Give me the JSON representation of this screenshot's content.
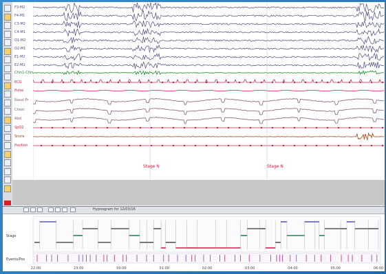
{
  "channels": [
    {
      "label": "F3-M2",
      "color": "#4a4a80"
    },
    {
      "label": "F4-M1",
      "color": "#4a4a80"
    },
    {
      "label": "C3-M2",
      "color": "#4a4a80"
    },
    {
      "label": "C4-M1",
      "color": "#4a4a80"
    },
    {
      "label": "O1-M2",
      "color": "#4a4a80"
    },
    {
      "label": "O2-M1",
      "color": "#4a4a80"
    },
    {
      "label": "E1-M2",
      "color": "#4a4a80"
    },
    {
      "label": "E2-M1",
      "color": "#4a4a80"
    },
    {
      "label": "Chin1-Chin2",
      "color": "#1a8a2a"
    },
    {
      "label": "ECG",
      "color": "#d02040"
    },
    {
      "label": "Pulse",
      "color": "#d02040"
    },
    {
      "label": "Nasal Pr",
      "color": "#8a5a7a"
    },
    {
      "label": "Chest",
      "color": "#8a5a7a"
    },
    {
      "label": "Abd",
      "color": "#8a5a7a"
    },
    {
      "label": "SpO2",
      "color": "#d02040"
    },
    {
      "label": "Snore",
      "color": "#a04010"
    },
    {
      "label": "Position",
      "color": "#d02040"
    }
  ],
  "annotations": [
    {
      "label": "Stage N",
      "color": "#d02040"
    },
    {
      "label": "Stage N",
      "color": "#d02040"
    }
  ],
  "bottom": {
    "title": "Hypnogram for 12/03/16",
    "row1_label": "Stage",
    "row2_label": "Events/Pos",
    "time_labels": [
      "22:00",
      "23:00",
      "00:00",
      "01:00",
      "02:00",
      "03:00",
      "04:00",
      "05:00",
      "06:00"
    ]
  },
  "colors": {
    "accent": "#d02040",
    "eeg": "#4a4a80",
    "emg": "#1a8a2a",
    "frame": "#2f7fb8"
  }
}
